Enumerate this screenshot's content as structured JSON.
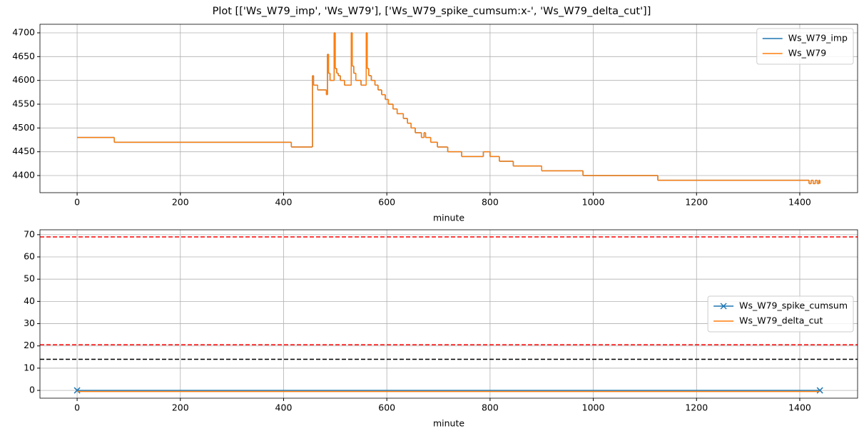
{
  "title": "Plot [['Ws_W79_imp', 'Ws_W79'], ['Ws_W79_spike_cumsum:x-', 'Ws_W79_delta_cut']]",
  "chart_data": [
    {
      "type": "line",
      "xlabel": "minute",
      "grid": true,
      "legend": "upper right",
      "xlim": [
        -72,
        1512
      ],
      "xticks": [
        0,
        200,
        400,
        600,
        800,
        1000,
        1200,
        1400
      ],
      "ylim": [
        4364,
        4718
      ],
      "yticks": [
        4400,
        4450,
        4500,
        4550,
        4600,
        4650,
        4700
      ],
      "x": [
        0,
        72,
        415,
        456,
        458,
        466,
        483,
        485,
        487,
        490,
        498,
        500,
        503,
        506,
        510,
        518,
        531,
        533,
        536,
        540,
        550,
        560,
        562,
        565,
        570,
        577,
        583,
        590,
        597,
        603,
        612,
        620,
        632,
        640,
        647,
        655,
        667,
        672,
        675,
        685,
        698,
        718,
        745,
        787,
        800,
        818,
        845,
        900,
        980,
        1125,
        1418,
        1422,
        1426,
        1430,
        1434,
        1437,
        1439
      ],
      "series": [
        {
          "name": "Ws_W79_imp",
          "color": "#1f77b4",
          "drawstyle": "steps-post",
          "values": [
            4480,
            4470,
            4460,
            4610,
            4590,
            4580,
            4570,
            4655,
            4615,
            4600,
            4700,
            4625,
            4615,
            4610,
            4600,
            4590,
            4700,
            4630,
            4615,
            4600,
            4590,
            4700,
            4625,
            4610,
            4600,
            4590,
            4580,
            4570,
            4560,
            4550,
            4540,
            4530,
            4520,
            4510,
            4500,
            4490,
            4480,
            4490,
            4480,
            4470,
            4460,
            4450,
            4440,
            4450,
            4440,
            4430,
            4420,
            4410,
            4400,
            4390,
            4383,
            4390,
            4383,
            4390,
            4383,
            4390,
            4383
          ]
        },
        {
          "name": "Ws_W79",
          "color": "#ff7f0e",
          "drawstyle": "steps-post",
          "values": [
            4480,
            4470,
            4460,
            4610,
            4590,
            4580,
            4570,
            4655,
            4615,
            4600,
            4700,
            4625,
            4615,
            4610,
            4600,
            4590,
            4700,
            4630,
            4615,
            4600,
            4590,
            4700,
            4625,
            4610,
            4600,
            4590,
            4580,
            4570,
            4560,
            4550,
            4540,
            4530,
            4520,
            4510,
            4500,
            4490,
            4480,
            4490,
            4480,
            4470,
            4460,
            4450,
            4440,
            4450,
            4440,
            4430,
            4420,
            4410,
            4400,
            4390,
            4383,
            4390,
            4383,
            4390,
            4383,
            4390,
            4383
          ]
        }
      ]
    },
    {
      "type": "line",
      "xlabel": "minute",
      "grid": true,
      "legend": "center right",
      "xlim": [
        -72,
        1512
      ],
      "xticks": [
        0,
        200,
        400,
        600,
        800,
        1000,
        1200,
        1400
      ],
      "ylim": [
        -3.5,
        72.2
      ],
      "yticks": [
        0,
        10,
        20,
        30,
        40,
        50,
        60,
        70
      ],
      "x": [
        0,
        1439
      ],
      "series": [
        {
          "name": "Ws_W79_spike_cumsum",
          "color": "#1f77b4",
          "marker": "x",
          "values": [
            0,
            0
          ]
        },
        {
          "name": "Ws_W79_delta_cut",
          "color": "#ff7f0e",
          "values": [
            -0.5,
            -0.5
          ]
        }
      ],
      "hlines": [
        {
          "value": 69,
          "color": "#ff0000"
        },
        {
          "value": 20.5,
          "color": "#ff0000"
        },
        {
          "value": 14,
          "color": "#000000"
        }
      ]
    }
  ]
}
